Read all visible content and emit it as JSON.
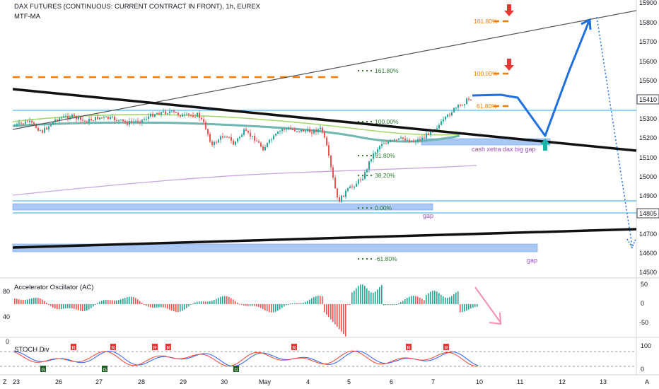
{
  "header": {
    "title": "DAX FUTURES (CONTINUOUS: CURRENT CONTRACT IN FRONT), 1h, EUREX",
    "indicator": "MTF-MA"
  },
  "price_axis": {
    "ticks": [
      "15900",
      "15800",
      "15700",
      "15600",
      "15500",
      "15400",
      "15300",
      "15200",
      "15100",
      "15000",
      "14900",
      "14800",
      "14700",
      "14600",
      "14500"
    ],
    "badge_current": "15410",
    "badge_level": "14805"
  },
  "fib_labels": {
    "fib_161_left": "161.80%",
    "fib_100_left": "100.00%",
    "fib_618_left": "61.80%",
    "fib_382_left": "38.20%",
    "fib_0_left": "0.00%",
    "fib_neg61_left": "-61.80%",
    "fib_161_right": "161.80%",
    "fib_100_right": "100.00%",
    "fib_618_right": "61.80%"
  },
  "annotations": {
    "gap_label_1": "gap",
    "gap_label_2": "gap",
    "cash_gap": "cash xetra dax big gap"
  },
  "ac_panel": {
    "title": "Accelerator Oscillator (AC)",
    "left_ticks": [
      "80",
      "40",
      "0"
    ],
    "right_ticks": [
      "50",
      "0",
      "-50"
    ]
  },
  "stoch_panel": {
    "title": "STOCH Div",
    "right_ticks": [
      "100",
      "0"
    ],
    "marker_r": "R",
    "marker_g": "G"
  },
  "time_axis": {
    "labels": [
      "23",
      "26",
      "27",
      "28",
      "29",
      "30",
      "May",
      "4",
      "5",
      "6",
      "7",
      "10",
      "11",
      "12",
      "13"
    ]
  },
  "corner": {
    "left": "Z",
    "right": "A"
  },
  "colors": {
    "candle_up": "#26a69a",
    "candle_down": "#ef5350",
    "fib_orange": "#f57c00",
    "fib_green": "#2e7d32",
    "projection_blue": "#1e6fe0",
    "gap_box": "#a9c8f5"
  }
}
